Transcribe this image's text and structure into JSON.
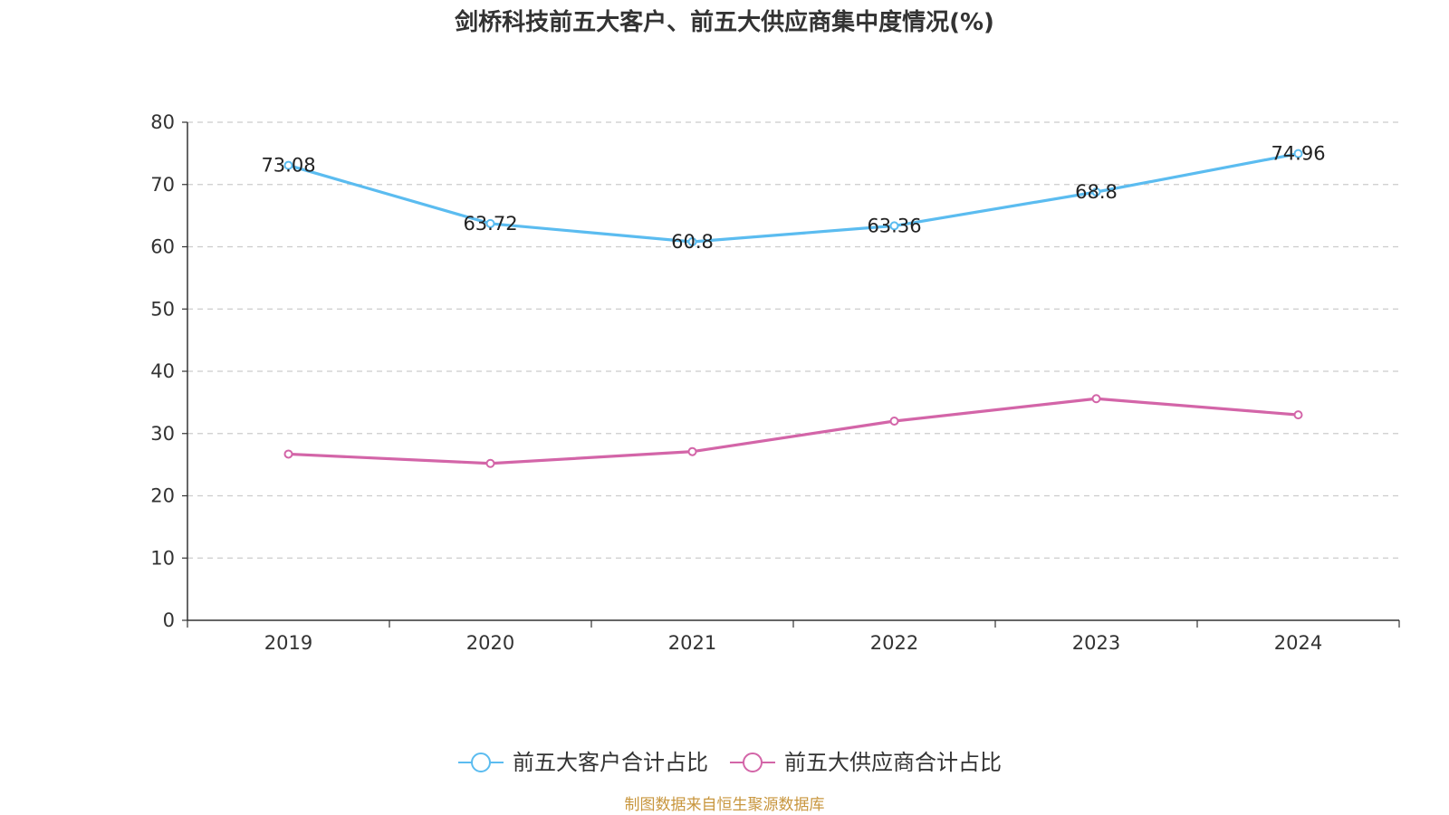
{
  "chart_data": {
    "type": "line",
    "title": "剑桥科技前五大客户、前五大供应商集中度情况(%)",
    "categories": [
      "2019",
      "2020",
      "2021",
      "2022",
      "2023",
      "2024"
    ],
    "series": [
      {
        "name": "前五大客户合计占比",
        "color": "#5bbcf0",
        "values": [
          73.08,
          63.72,
          60.8,
          63.36,
          68.8,
          74.96
        ],
        "labels": [
          "73.08",
          "63.72",
          "60.8",
          "63.36",
          "68.8",
          "74.96"
        ]
      },
      {
        "name": "前五大供应商合计占比",
        "color": "#d365a8",
        "values": [
          26.7,
          25.2,
          27.1,
          32.0,
          35.6,
          33.0
        ]
      }
    ],
    "y_ticks": [
      "0",
      "10",
      "20",
      "30",
      "40",
      "50",
      "60",
      "70",
      "80"
    ],
    "ylim": [
      0,
      80
    ],
    "grid": true,
    "legend_position": "bottom-center"
  },
  "source": "制图数据来自恒生聚源数据库",
  "source_color": "#c8963e"
}
